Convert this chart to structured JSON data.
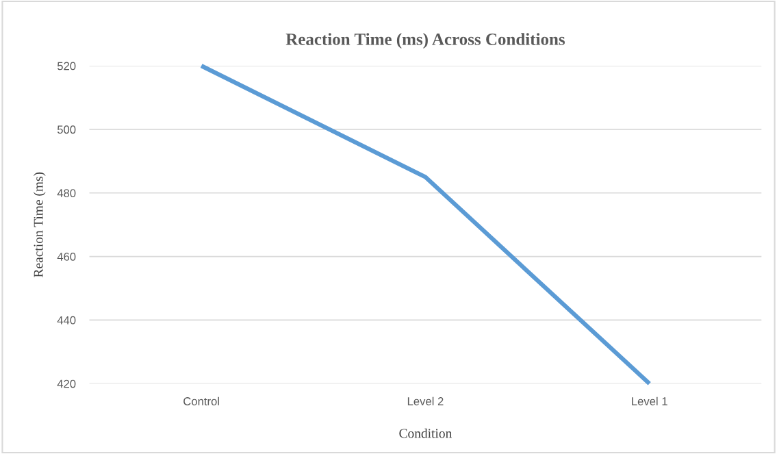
{
  "chart_data": {
    "type": "line",
    "title": "Reaction Time (ms) Across Conditions",
    "xlabel": "Condition",
    "ylabel": "Reaction Time (ms)",
    "categories": [
      "Control",
      "Level 2",
      "Level 1"
    ],
    "series": [
      {
        "color": "#5b9bd5",
        "values": [
          520,
          485,
          420
        ]
      }
    ],
    "ylim": [
      420,
      520
    ],
    "yticks": [
      420,
      440,
      460,
      480,
      500,
      520
    ],
    "grid": "y",
    "marker": "none",
    "line_style": "solid"
  }
}
